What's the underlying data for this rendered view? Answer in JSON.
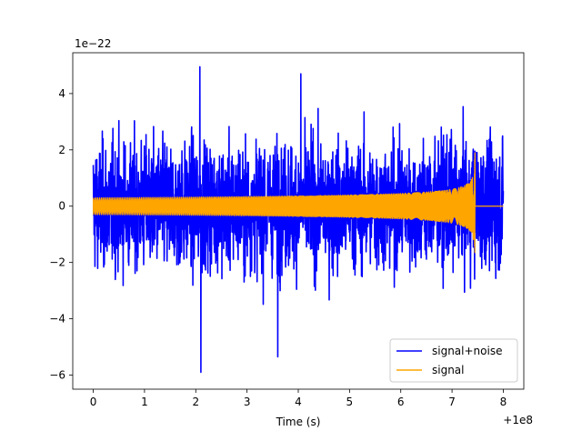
{
  "chart_data": {
    "type": "line",
    "xlabel": "Time (s)",
    "ylabel": "",
    "y_scale_label": "1e−22",
    "x_offset_label": "+1e8",
    "xlim": [
      -0.4,
      8.4
    ],
    "ylim": [
      -6.5,
      5.45
    ],
    "x_ticks": [
      0,
      1,
      2,
      3,
      4,
      5,
      6,
      7,
      8
    ],
    "x_tick_labels": [
      "0",
      "1",
      "2",
      "3",
      "4",
      "5",
      "6",
      "7",
      "8"
    ],
    "y_ticks": [
      -6,
      -4,
      -2,
      0,
      2,
      4
    ],
    "y_tick_labels": [
      "−6",
      "−4",
      "−2",
      "0",
      "2",
      "4"
    ],
    "grid": false,
    "legend_position": "lower-right",
    "series": [
      {
        "name": "signal+noise",
        "color": "#0000ff",
        "x_range": [
          0,
          8
        ],
        "noise_amplitude": 1.1,
        "extremes": [
          {
            "x": 2.08,
            "y": 4.95
          },
          {
            "x": 2.1,
            "y": -5.9
          },
          {
            "x": 3.6,
            "y": -5.35
          },
          {
            "x": 4.05,
            "y": 4.7
          }
        ]
      },
      {
        "name": "signal",
        "color": "#ffa500",
        "x_range": [
          0,
          8
        ],
        "merger_x": 7.45,
        "start_amplitude": 0.3,
        "peak_amplitude": 2.0,
        "min_value": -1.65
      }
    ]
  }
}
